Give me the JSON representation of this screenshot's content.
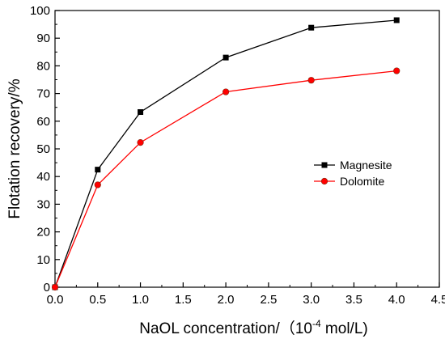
{
  "chart_data": {
    "type": "line",
    "title": "",
    "xlabel_main": "NaOL concentration/（10",
    "xlabel_exp": "-4",
    "xlabel_tail": " mol/L)",
    "ylabel": "Flotation recovery/%",
    "xlim": [
      0,
      4.5
    ],
    "ylim": [
      0,
      100
    ],
    "xticks": [
      "0.0",
      "0.5",
      "1.0",
      "1.5",
      "2.0",
      "2.5",
      "3.0",
      "3.5",
      "4.0",
      "4.5"
    ],
    "yticks": [
      "0",
      "10",
      "20",
      "30",
      "40",
      "50",
      "60",
      "70",
      "80",
      "90",
      "100"
    ],
    "grid": false,
    "legend_position": "right",
    "series": [
      {
        "name": "Magnesite",
        "marker": "square",
        "line_color": "#000000",
        "marker_color": "#000000",
        "x": [
          0,
          0.5,
          1.0,
          2.0,
          3.0,
          4.0
        ],
        "y": [
          0,
          42.5,
          63.3,
          83.0,
          93.8,
          96.5
        ]
      },
      {
        "name": "Dolomite",
        "marker": "circle",
        "line_color": "#ff0000",
        "marker_color": "#ff0000",
        "marker_edge": "#7a2a10",
        "x": [
          0,
          0.5,
          1.0,
          2.0,
          3.0,
          4.0
        ],
        "y": [
          0,
          37.0,
          52.3,
          70.6,
          74.8,
          78.2
        ]
      }
    ]
  }
}
